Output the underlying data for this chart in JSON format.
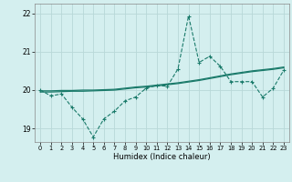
{
  "xlabel": "Humidex (Indice chaleur)",
  "background_color": "#d4efef",
  "grid_color": "#b8d8d8",
  "line_color": "#1a7a6a",
  "xlim": [
    -0.5,
    23.5
  ],
  "ylim": [
    18.65,
    22.25
  ],
  "yticks": [
    19,
    20,
    21,
    22
  ],
  "xticks": [
    0,
    1,
    2,
    3,
    4,
    5,
    6,
    7,
    8,
    9,
    10,
    11,
    12,
    13,
    14,
    15,
    16,
    17,
    18,
    19,
    20,
    21,
    22,
    23
  ],
  "series1_x": [
    0,
    1,
    2,
    3,
    4,
    5,
    6,
    7,
    8,
    9,
    10,
    11,
    12,
    13,
    14,
    15,
    16,
    17,
    18,
    19,
    20,
    21,
    22,
    23
  ],
  "series1_y": [
    20.0,
    19.85,
    19.9,
    19.55,
    19.25,
    18.78,
    19.25,
    19.45,
    19.72,
    19.82,
    20.05,
    20.12,
    20.1,
    20.55,
    21.93,
    20.72,
    20.88,
    20.62,
    20.22,
    20.22,
    20.22,
    19.82,
    20.05,
    20.52
  ],
  "series2_x": [
    0,
    1,
    2,
    3,
    4,
    5,
    6,
    7,
    8,
    9,
    10,
    11,
    12,
    13,
    14,
    15,
    16,
    17,
    18,
    19,
    20,
    21,
    22,
    23
  ],
  "series2_y": [
    19.98,
    19.98,
    19.99,
    19.99,
    20.0,
    20.0,
    20.01,
    20.02,
    20.05,
    20.08,
    20.1,
    20.13,
    20.16,
    20.19,
    20.23,
    20.27,
    20.32,
    20.37,
    20.42,
    20.46,
    20.5,
    20.53,
    20.56,
    20.6
  ],
  "series3_x": [
    0,
    1,
    2,
    3,
    4,
    5,
    6,
    7,
    8,
    9,
    10,
    11,
    12,
    13,
    14,
    15,
    16,
    17,
    18,
    19,
    20,
    21,
    22,
    23
  ],
  "series3_y": [
    19.95,
    19.95,
    19.96,
    19.97,
    19.97,
    19.98,
    19.99,
    20.0,
    20.03,
    20.06,
    20.08,
    20.11,
    20.14,
    20.17,
    20.21,
    20.25,
    20.3,
    20.35,
    20.4,
    20.44,
    20.48,
    20.51,
    20.54,
    20.58
  ]
}
